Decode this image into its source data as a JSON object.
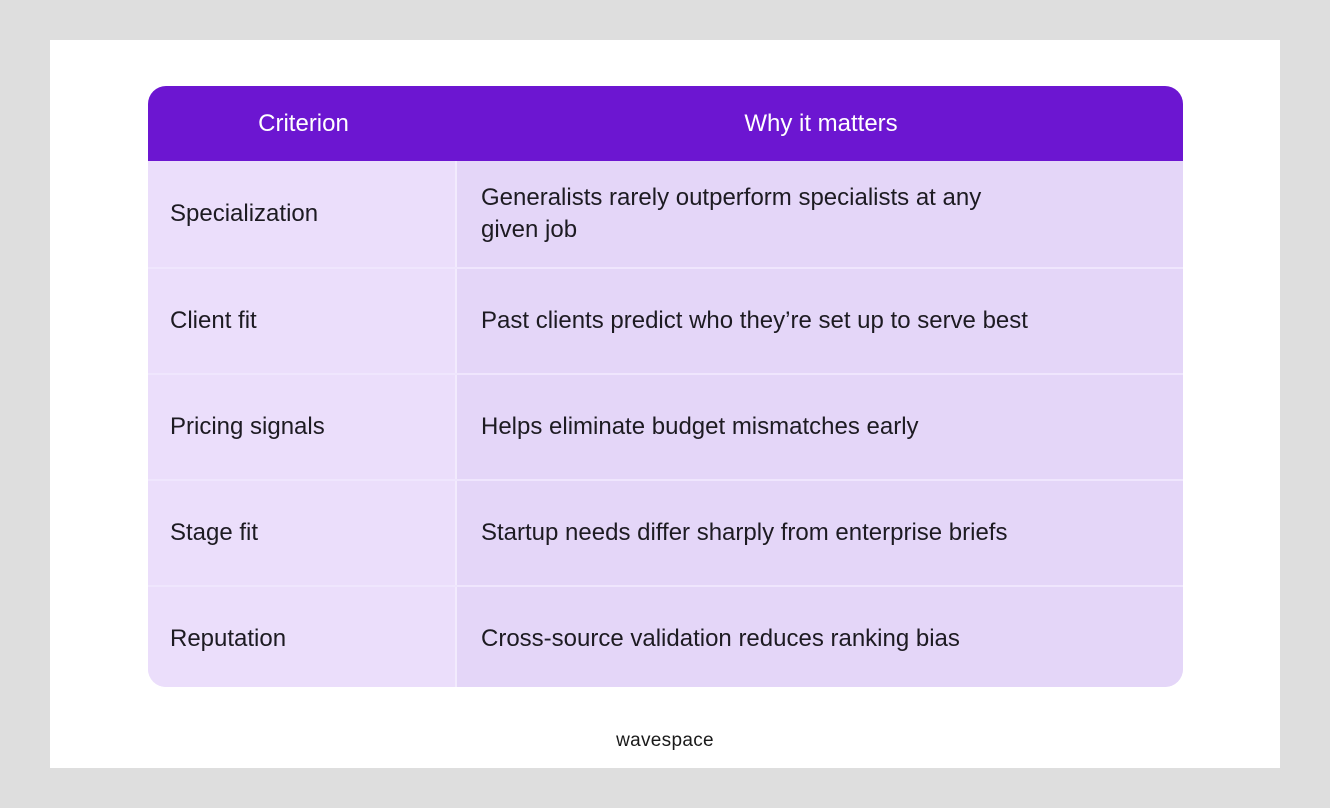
{
  "table": {
    "headers": [
      "Criterion",
      "Why it matters"
    ],
    "rows": [
      {
        "criterion": "Specialization",
        "why": "Generalists rarely outperform specialists at any given job"
      },
      {
        "criterion": "Client fit",
        "why": "Past clients predict who they’re set up to serve best"
      },
      {
        "criterion": "Pricing signals",
        "why": "Helps eliminate budget mismatches early"
      },
      {
        "criterion": "Stage fit",
        "why": "Startup needs differ sharply from enterprise briefs"
      },
      {
        "criterion": "Reputation",
        "why": "Cross-source validation reduces ranking bias"
      }
    ]
  },
  "brand": {
    "name": "wavespace"
  },
  "colors": {
    "header_bg": "#6c16d1",
    "row_bg_left": "#ebdefb",
    "row_bg_right": "#e4d6f8",
    "page_bg": "#dedede",
    "card_bg": "#ffffff"
  }
}
